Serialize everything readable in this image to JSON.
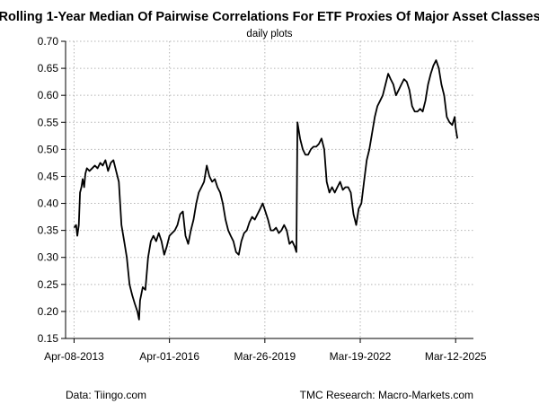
{
  "chart_data": {
    "type": "line",
    "title": "Rolling 1-Year Median Of Pairwise Correlations For ETF Proxies Of Major Asset Classes",
    "subtitle": "daily plots",
    "xlabel": "",
    "ylabel": "",
    "ylim": [
      0.15,
      0.7
    ],
    "y_ticks": [
      "0.15",
      "0.20",
      "0.25",
      "0.30",
      "0.35",
      "0.40",
      "0.45",
      "0.50",
      "0.55",
      "0.60",
      "0.65",
      "0.70"
    ],
    "x_tick_labels": [
      "Apr-08-2013",
      "Apr-01-2016",
      "Mar-26-2019",
      "Mar-19-2022",
      "Mar-12-2025"
    ],
    "x_range": [
      "2013-01-01",
      "2025-10-01"
    ],
    "grid": true,
    "series": [
      {
        "values": [
          [
            "2013-04-08",
            0.355
          ],
          [
            "2013-05-01",
            0.36
          ],
          [
            "2013-05-15",
            0.34
          ],
          [
            "2013-06-01",
            0.36
          ],
          [
            "2013-06-15",
            0.42
          ],
          [
            "2013-07-01",
            0.43
          ],
          [
            "2013-07-15",
            0.445
          ],
          [
            "2013-08-01",
            0.43
          ],
          [
            "2013-08-15",
            0.455
          ],
          [
            "2013-09-01",
            0.465
          ],
          [
            "2013-10-01",
            0.46
          ],
          [
            "2013-11-01",
            0.465
          ],
          [
            "2013-12-01",
            0.47
          ],
          [
            "2014-01-01",
            0.465
          ],
          [
            "2014-02-01",
            0.475
          ],
          [
            "2014-03-01",
            0.47
          ],
          [
            "2014-04-01",
            0.48
          ],
          [
            "2014-05-01",
            0.46
          ],
          [
            "2014-06-01",
            0.475
          ],
          [
            "2014-07-01",
            0.48
          ],
          [
            "2014-08-01",
            0.46
          ],
          [
            "2014-09-01",
            0.44
          ],
          [
            "2014-10-01",
            0.36
          ],
          [
            "2014-11-01",
            0.33
          ],
          [
            "2014-12-01",
            0.3
          ],
          [
            "2015-01-01",
            0.25
          ],
          [
            "2015-02-01",
            0.23
          ],
          [
            "2015-03-01",
            0.215
          ],
          [
            "2015-04-01",
            0.2
          ],
          [
            "2015-04-20",
            0.185
          ],
          [
            "2015-05-01",
            0.22
          ],
          [
            "2015-06-01",
            0.245
          ],
          [
            "2015-07-01",
            0.24
          ],
          [
            "2015-08-01",
            0.3
          ],
          [
            "2015-09-01",
            0.33
          ],
          [
            "2015-10-01",
            0.34
          ],
          [
            "2015-11-01",
            0.33
          ],
          [
            "2015-12-01",
            0.345
          ],
          [
            "2016-01-01",
            0.33
          ],
          [
            "2016-02-01",
            0.305
          ],
          [
            "2016-03-01",
            0.32
          ],
          [
            "2016-04-01",
            0.34
          ],
          [
            "2016-05-01",
            0.345
          ],
          [
            "2016-06-01",
            0.35
          ],
          [
            "2016-07-01",
            0.36
          ],
          [
            "2016-08-01",
            0.38
          ],
          [
            "2016-09-01",
            0.385
          ],
          [
            "2016-10-01",
            0.34
          ],
          [
            "2016-11-01",
            0.325
          ],
          [
            "2016-12-01",
            0.35
          ],
          [
            "2017-01-01",
            0.37
          ],
          [
            "2017-02-01",
            0.4
          ],
          [
            "2017-03-01",
            0.42
          ],
          [
            "2017-04-01",
            0.43
          ],
          [
            "2017-05-01",
            0.44
          ],
          [
            "2017-06-01",
            0.47
          ],
          [
            "2017-07-01",
            0.45
          ],
          [
            "2017-08-01",
            0.44
          ],
          [
            "2017-09-01",
            0.445
          ],
          [
            "2017-10-01",
            0.43
          ],
          [
            "2017-11-01",
            0.42
          ],
          [
            "2017-12-01",
            0.4
          ],
          [
            "2018-01-01",
            0.37
          ],
          [
            "2018-02-01",
            0.35
          ],
          [
            "2018-03-01",
            0.34
          ],
          [
            "2018-04-01",
            0.33
          ],
          [
            "2018-05-01",
            0.31
          ],
          [
            "2018-06-01",
            0.305
          ],
          [
            "2018-07-01",
            0.33
          ],
          [
            "2018-08-01",
            0.345
          ],
          [
            "2018-09-01",
            0.35
          ],
          [
            "2018-10-01",
            0.365
          ],
          [
            "2018-11-01",
            0.375
          ],
          [
            "2018-12-01",
            0.37
          ],
          [
            "2019-01-01",
            0.38
          ],
          [
            "2019-02-01",
            0.39
          ],
          [
            "2019-03-01",
            0.4
          ],
          [
            "2019-04-01",
            0.385
          ],
          [
            "2019-05-01",
            0.37
          ],
          [
            "2019-06-01",
            0.35
          ],
          [
            "2019-07-01",
            0.35
          ],
          [
            "2019-08-01",
            0.355
          ],
          [
            "2019-09-01",
            0.345
          ],
          [
            "2019-10-01",
            0.35
          ],
          [
            "2019-11-01",
            0.36
          ],
          [
            "2019-12-01",
            0.35
          ],
          [
            "2020-01-01",
            0.325
          ],
          [
            "2020-02-01",
            0.33
          ],
          [
            "2020-03-01",
            0.32
          ],
          [
            "2020-03-20",
            0.31
          ],
          [
            "2020-04-01",
            0.55
          ],
          [
            "2020-05-01",
            0.52
          ],
          [
            "2020-06-01",
            0.5
          ],
          [
            "2020-07-01",
            0.49
          ],
          [
            "2020-08-01",
            0.49
          ],
          [
            "2020-09-01",
            0.5
          ],
          [
            "2020-10-01",
            0.505
          ],
          [
            "2020-11-01",
            0.505
          ],
          [
            "2020-12-01",
            0.51
          ],
          [
            "2021-01-01",
            0.52
          ],
          [
            "2021-02-01",
            0.5
          ],
          [
            "2021-03-01",
            0.44
          ],
          [
            "2021-04-01",
            0.42
          ],
          [
            "2021-05-01",
            0.43
          ],
          [
            "2021-06-01",
            0.42
          ],
          [
            "2021-07-01",
            0.43
          ],
          [
            "2021-08-01",
            0.44
          ],
          [
            "2021-09-01",
            0.425
          ],
          [
            "2021-10-01",
            0.43
          ],
          [
            "2021-11-01",
            0.43
          ],
          [
            "2021-12-01",
            0.42
          ],
          [
            "2022-01-01",
            0.38
          ],
          [
            "2022-02-01",
            0.36
          ],
          [
            "2022-03-01",
            0.39
          ],
          [
            "2022-04-01",
            0.4
          ],
          [
            "2022-05-01",
            0.44
          ],
          [
            "2022-06-01",
            0.48
          ],
          [
            "2022-07-01",
            0.5
          ],
          [
            "2022-08-01",
            0.53
          ],
          [
            "2022-09-01",
            0.56
          ],
          [
            "2022-10-01",
            0.58
          ],
          [
            "2022-11-01",
            0.59
          ],
          [
            "2022-12-01",
            0.6
          ],
          [
            "2023-01-01",
            0.62
          ],
          [
            "2023-02-01",
            0.64
          ],
          [
            "2023-03-01",
            0.63
          ],
          [
            "2023-04-01",
            0.62
          ],
          [
            "2023-05-01",
            0.6
          ],
          [
            "2023-06-01",
            0.61
          ],
          [
            "2023-07-01",
            0.62
          ],
          [
            "2023-08-01",
            0.63
          ],
          [
            "2023-09-01",
            0.625
          ],
          [
            "2023-10-01",
            0.61
          ],
          [
            "2023-11-01",
            0.58
          ],
          [
            "2023-12-01",
            0.57
          ],
          [
            "2024-01-01",
            0.57
          ],
          [
            "2024-02-01",
            0.575
          ],
          [
            "2024-03-01",
            0.57
          ],
          [
            "2024-04-01",
            0.59
          ],
          [
            "2024-05-01",
            0.62
          ],
          [
            "2024-06-01",
            0.64
          ],
          [
            "2024-07-01",
            0.655
          ],
          [
            "2024-08-01",
            0.665
          ],
          [
            "2024-09-01",
            0.65
          ],
          [
            "2024-10-01",
            0.62
          ],
          [
            "2024-11-01",
            0.6
          ],
          [
            "2024-12-01",
            0.56
          ],
          [
            "2025-01-01",
            0.55
          ],
          [
            "2025-02-01",
            0.545
          ],
          [
            "2025-03-01",
            0.56
          ],
          [
            "2025-03-12",
            0.54
          ],
          [
            "2025-04-01",
            0.52
          ]
        ]
      }
    ]
  },
  "footer": {
    "source": "Data: Tiingo.com",
    "credit": "TMC Research: Macro-Markets.com"
  }
}
